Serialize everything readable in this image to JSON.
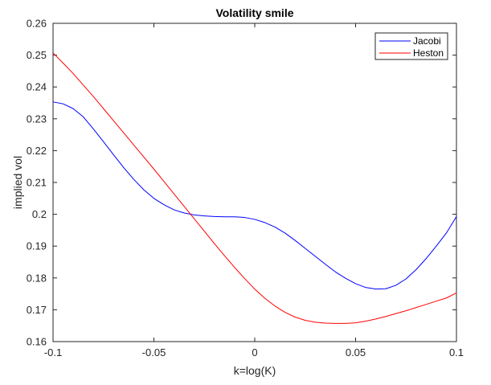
{
  "chart_data": {
    "type": "line",
    "title": "Volatility smile",
    "xlabel": "k=log(K)",
    "ylabel": "implied vol",
    "xlim": [
      -0.1,
      0.1
    ],
    "ylim": [
      0.16,
      0.26
    ],
    "xticks": [
      -0.1,
      -0.05,
      0,
      0.05,
      0.1
    ],
    "xtick_labels": [
      "-0.1",
      "-0.05",
      "0",
      "0.05",
      "0.1"
    ],
    "yticks": [
      0.16,
      0.17,
      0.18,
      0.19,
      0.2,
      0.21,
      0.22,
      0.23,
      0.24,
      0.25,
      0.26
    ],
    "ytick_labels": [
      "0.16",
      "0.17",
      "0.18",
      "0.19",
      "0.2",
      "0.21",
      "0.22",
      "0.23",
      "0.24",
      "0.25",
      "0.26"
    ],
    "grid": false,
    "legend_position": "top-right",
    "series": [
      {
        "name": "Jacobi",
        "color": "#0000ff",
        "x": [
          -0.1,
          -0.095,
          -0.09,
          -0.085,
          -0.08,
          -0.075,
          -0.07,
          -0.065,
          -0.06,
          -0.055,
          -0.05,
          -0.045,
          -0.04,
          -0.035,
          -0.03,
          -0.025,
          -0.02,
          -0.015,
          -0.01,
          -0.005,
          0,
          0.005,
          0.01,
          0.015,
          0.02,
          0.025,
          0.03,
          0.035,
          0.04,
          0.045,
          0.05,
          0.055,
          0.06,
          0.065,
          0.07,
          0.075,
          0.08,
          0.085,
          0.09,
          0.095,
          0.1
        ],
        "y": [
          0.2353,
          0.2347,
          0.2332,
          0.2306,
          0.2268,
          0.2228,
          0.2187,
          0.2147,
          0.211,
          0.2077,
          0.205,
          0.203,
          0.2014,
          0.2004,
          0.1998,
          0.1995,
          0.1993,
          0.1992,
          0.1992,
          0.199,
          0.1984,
          0.1974,
          0.196,
          0.1941,
          0.1918,
          0.1893,
          0.1868,
          0.1843,
          0.1819,
          0.1799,
          0.1782,
          0.177,
          0.1765,
          0.1766,
          0.1777,
          0.1797,
          0.1826,
          0.1861,
          0.19,
          0.1941,
          0.1993
        ]
      },
      {
        "name": "Heston",
        "color": "#ff0000",
        "x": [
          -0.1,
          -0.095,
          -0.09,
          -0.085,
          -0.08,
          -0.075,
          -0.07,
          -0.065,
          -0.06,
          -0.055,
          -0.05,
          -0.045,
          -0.04,
          -0.035,
          -0.03,
          -0.025,
          -0.02,
          -0.015,
          -0.01,
          -0.005,
          0,
          0.005,
          0.01,
          0.015,
          0.02,
          0.025,
          0.03,
          0.035,
          0.04,
          0.045,
          0.05,
          0.055,
          0.06,
          0.065,
          0.07,
          0.075,
          0.08,
          0.085,
          0.09,
          0.095,
          0.1
        ],
        "y": [
          0.2507,
          0.2475,
          0.2442,
          0.2406,
          0.237,
          0.2332,
          0.2294,
          0.2256,
          0.2218,
          0.218,
          0.2142,
          0.2103,
          0.2064,
          0.2025,
          0.1986,
          0.1947,
          0.1908,
          0.187,
          0.1833,
          0.1798,
          0.1765,
          0.1736,
          0.1712,
          0.1692,
          0.1677,
          0.1667,
          0.1661,
          0.1658,
          0.1657,
          0.1657,
          0.1659,
          0.1664,
          0.1671,
          0.1679,
          0.1688,
          0.1697,
          0.1707,
          0.1717,
          0.1727,
          0.1737,
          0.1753
        ]
      }
    ]
  }
}
